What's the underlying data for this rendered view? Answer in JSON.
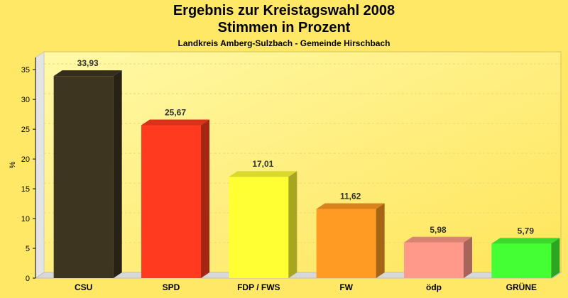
{
  "header": {
    "title_line1": "Ergebnis zur Kreistagswahl 2008",
    "title_line2": "Stimmen in Prozent",
    "subtitle": "Landkreis Amberg-Sulzbach - Gemeinde Hirschbach"
  },
  "chart_data": {
    "type": "bar",
    "title": "Ergebnis zur Kreistagswahl 2008 Stimmen in Prozent",
    "subtitle": "Landkreis Amberg-Sulzbach - Gemeinde Hirschbach",
    "xlabel": "",
    "ylabel": "%",
    "ylim": [
      0,
      38
    ],
    "yticks": [
      0,
      5,
      10,
      15,
      20,
      25,
      30,
      35
    ],
    "grid": true,
    "categories": [
      "CSU",
      "SPD",
      "FDP / FWS",
      "FW",
      "ödp",
      "GRÜNE"
    ],
    "values": [
      33.93,
      25.67,
      17.01,
      11.62,
      5.98,
      5.79
    ],
    "value_labels": [
      "33,93",
      "25,67",
      "17,01",
      "11,62",
      "5,98",
      "5,79"
    ],
    "colors": [
      "#3d3520",
      "#ff3a1f",
      "#ffff33",
      "#ff9a22",
      "#ff9a8a",
      "#44ff33"
    ]
  }
}
